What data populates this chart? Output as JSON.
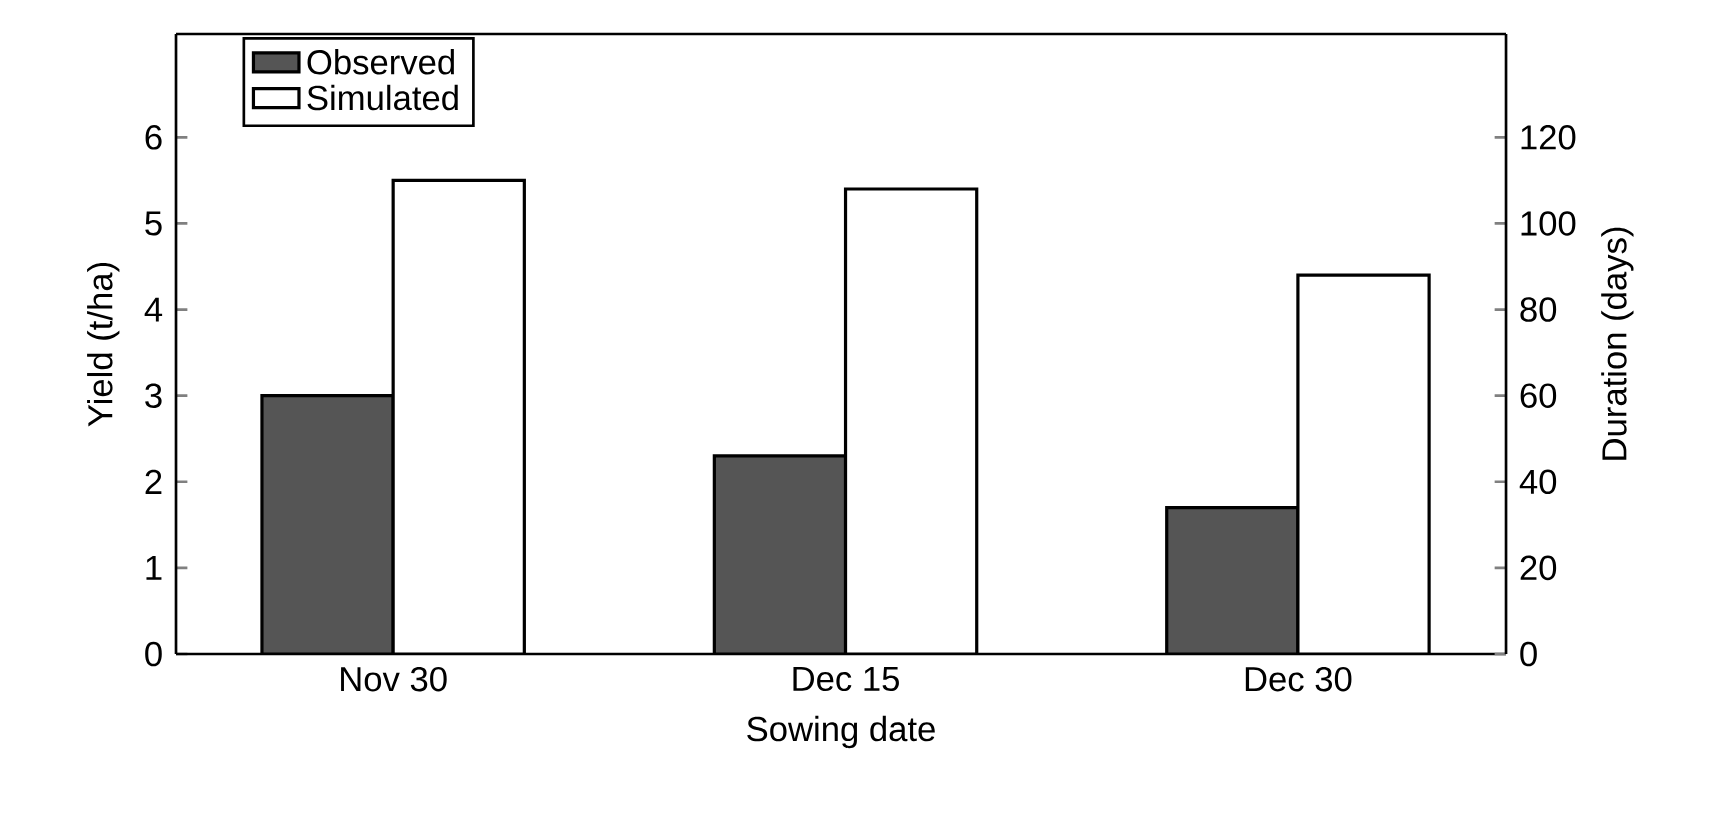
{
  "chart_data": {
    "type": "bar",
    "xlabel": "Sowing date",
    "ylabel": "Yield (t/ha)",
    "y2label": "Duration (days)",
    "categories": [
      "Nov 30",
      "Dec 15",
      "Dec 30"
    ],
    "series": [
      {
        "name": "Observed",
        "color": "#555555",
        "values": [
          3.0,
          2.3,
          1.7
        ]
      },
      {
        "name": "Simulated",
        "color": "#ffffff",
        "values": [
          5.5,
          5.4,
          4.4
        ]
      }
    ],
    "ylim": [
      0,
      7.2
    ],
    "yticks": [
      0,
      1,
      2,
      3,
      4,
      5,
      6
    ],
    "y2lim": [
      0,
      144
    ],
    "y2ticks": [
      0,
      20,
      40,
      60,
      80,
      100,
      120
    ],
    "legend": "top left",
    "grid": false
  }
}
